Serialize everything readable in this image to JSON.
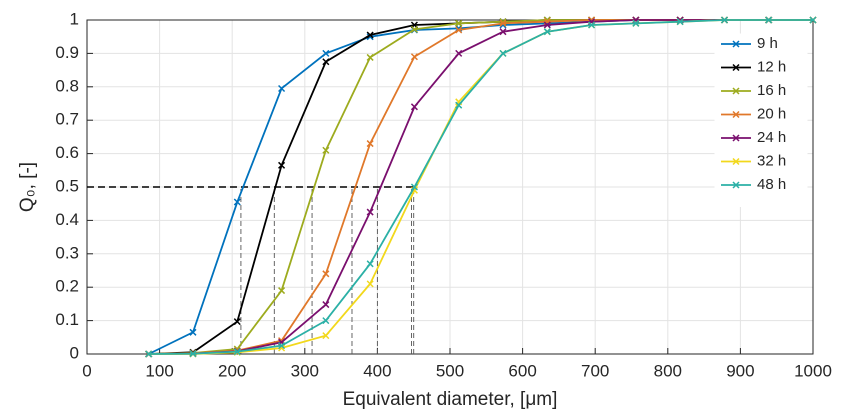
{
  "chart_data": {
    "type": "line",
    "x_label": "Equivalent diameter, [μm]",
    "y_label": "Q₀, [-]",
    "x": [
      85,
      146,
      207,
      268,
      329,
      390,
      451,
      512,
      573,
      634,
      695,
      756,
      817,
      878,
      939,
      1000
    ],
    "series": [
      {
        "name": "9 h",
        "color": "#0072bd",
        "values": [
          0,
          0.065,
          0.455,
          0.795,
          0.9,
          0.95,
          0.97,
          0.975,
          0.985,
          0.99,
          0.995,
          1,
          1,
          1,
          1,
          1
        ]
      },
      {
        "name": "12 h",
        "color": "#000000",
        "values": [
          0,
          0.005,
          0.097,
          0.565,
          0.875,
          0.955,
          0.985,
          0.99,
          0.995,
          1,
          1,
          1,
          1,
          1,
          1,
          1
        ]
      },
      {
        "name": "16 h",
        "color": "#9dab1e",
        "values": [
          0,
          0.003,
          0.015,
          0.19,
          0.61,
          0.888,
          0.972,
          0.99,
          0.995,
          1,
          1,
          1,
          1,
          1,
          1,
          1
        ]
      },
      {
        "name": "20 h",
        "color": "#e0782a",
        "values": [
          0,
          0.002,
          0.01,
          0.04,
          0.24,
          0.63,
          0.89,
          0.97,
          0.99,
          0.995,
          1,
          1,
          1,
          1,
          1,
          1
        ]
      },
      {
        "name": "24 h",
        "color": "#7a0f6e",
        "values": [
          0,
          0.001,
          0.008,
          0.035,
          0.148,
          0.425,
          0.74,
          0.9,
          0.965,
          0.985,
          0.995,
          1,
          1,
          1,
          1,
          1
        ]
      },
      {
        "name": "32 h",
        "color": "#f2d81c",
        "values": [
          0,
          0,
          0.005,
          0.018,
          0.055,
          0.21,
          0.49,
          0.755,
          0.9,
          0.965,
          0.985,
          0.99,
          0.995,
          1,
          1,
          1
        ]
      },
      {
        "name": "48 h",
        "color": "#2bb0a6",
        "values": [
          0,
          0.001,
          0.007,
          0.025,
          0.1,
          0.27,
          0.5,
          0.745,
          0.9,
          0.965,
          0.985,
          0.99,
          0.995,
          1,
          1,
          1
        ]
      }
    ],
    "reference_y": 0.5,
    "reference_x": [
      212,
      258,
      310,
      365,
      400,
      447,
      450
    ],
    "xlim": [
      0,
      1000
    ],
    "xticks": [
      0,
      100,
      200,
      300,
      400,
      500,
      600,
      700,
      800,
      900,
      1000
    ],
    "ylim": [
      0,
      1
    ],
    "yticks": [
      0,
      0.1,
      0.2,
      0.3,
      0.4,
      0.5,
      0.6,
      0.7,
      0.8,
      0.9,
      1
    ],
    "grid": true,
    "legend": "upper right"
  }
}
